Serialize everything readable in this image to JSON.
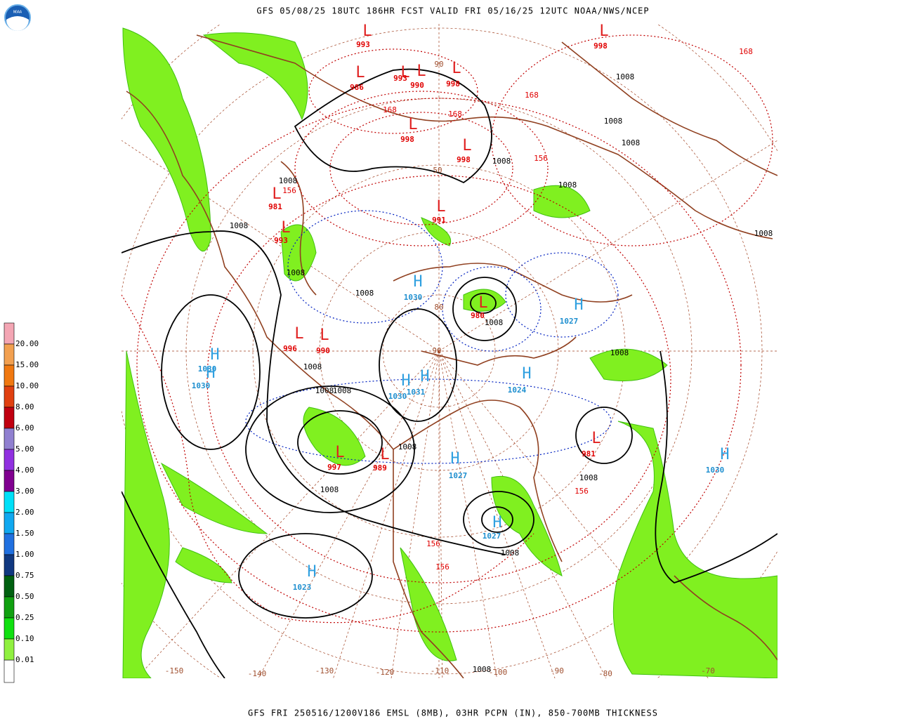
{
  "header": {
    "title": "GFS 05/08/25 18UTC 186HR FCST VALID FRI 05/16/25 12UTC NOAA/NWS/NCEP",
    "logo": "NOAA"
  },
  "footer": "GFS FRI 250516/1200V186 EMSL (8MB), 03HR PCPN (IN), 850-700MB THICKNESS",
  "legend": {
    "items": [
      {
        "label": "20.00",
        "color": "#f4a6b4"
      },
      {
        "label": "15.00",
        "color": "#f2a050"
      },
      {
        "label": "10.00",
        "color": "#f07810"
      },
      {
        "label": "8.00",
        "color": "#e04010"
      },
      {
        "label": "6.00",
        "color": "#c00010"
      },
      {
        "label": "5.00",
        "color": "#9080d0"
      },
      {
        "label": "4.00",
        "color": "#9030e0"
      },
      {
        "label": "3.00",
        "color": "#800090"
      },
      {
        "label": "2.00",
        "color": "#00e0f8"
      },
      {
        "label": "1.50",
        "color": "#10a8f0"
      },
      {
        "label": "1.00",
        "color": "#2070e0"
      },
      {
        "label": "0.75",
        "color": "#103880"
      },
      {
        "label": "0.50",
        "color": "#006010"
      },
      {
        "label": "0.25",
        "color": "#10a010"
      },
      {
        "label": "0.10",
        "color": "#10e010"
      },
      {
        "label": "0.01",
        "color": "#90f040"
      }
    ]
  },
  "map": {
    "centers": [
      {
        "symbol": "L",
        "pressure": "993"
      },
      {
        "symbol": "L",
        "pressure": "998"
      },
      {
        "symbol": "L",
        "pressure": "986"
      },
      {
        "symbol": "L",
        "pressure": "993"
      },
      {
        "symbol": "L",
        "pressure": "990"
      },
      {
        "symbol": "L",
        "pressure": "998"
      },
      {
        "symbol": "L",
        "pressure": "998"
      },
      {
        "symbol": "L",
        "pressure": "998"
      },
      {
        "symbol": "L",
        "pressure": "991"
      },
      {
        "symbol": "L",
        "pressure": "993"
      },
      {
        "symbol": "L",
        "pressure": "981"
      },
      {
        "symbol": "L",
        "pressure": "996"
      },
      {
        "symbol": "L",
        "pressure": "990"
      },
      {
        "symbol": "L",
        "pressure": "997"
      },
      {
        "symbol": "L",
        "pressure": "989"
      },
      {
        "symbol": "L",
        "pressure": "980"
      },
      {
        "symbol": "L",
        "pressure": "981"
      },
      {
        "symbol": "H",
        "pressure": "1027"
      },
      {
        "symbol": "H",
        "pressure": "1030"
      },
      {
        "symbol": "H",
        "pressure": "1030"
      },
      {
        "symbol": "H",
        "pressure": "1030"
      },
      {
        "symbol": "H",
        "pressure": "1030"
      },
      {
        "symbol": "H",
        "pressure": "1031"
      },
      {
        "symbol": "H",
        "pressure": "1027"
      },
      {
        "symbol": "H",
        "pressure": "1024"
      },
      {
        "symbol": "H",
        "pressure": "1030"
      },
      {
        "symbol": "H",
        "pressure": "1023"
      },
      {
        "symbol": "H",
        "pressure": "1027"
      }
    ],
    "isobar_labels": [
      "1008",
      "1008",
      "1008",
      "1008",
      "1008",
      "1008",
      "1008",
      "1008",
      "1008",
      "1008",
      "1008",
      "1008",
      "1008",
      "1008",
      "1008",
      "1008",
      "1008",
      "1008",
      "1008",
      "1008"
    ],
    "thickness_labels": [
      "168",
      "168",
      "168",
      "168",
      "156",
      "156",
      "156",
      "156",
      "156"
    ],
    "latitude_labels": [
      "90",
      "50",
      "80",
      "90"
    ],
    "longitude_labels": [
      "-150",
      "-140",
      "-130",
      "-120",
      "-110",
      "-100",
      "-90",
      "-80",
      "-70"
    ]
  }
}
